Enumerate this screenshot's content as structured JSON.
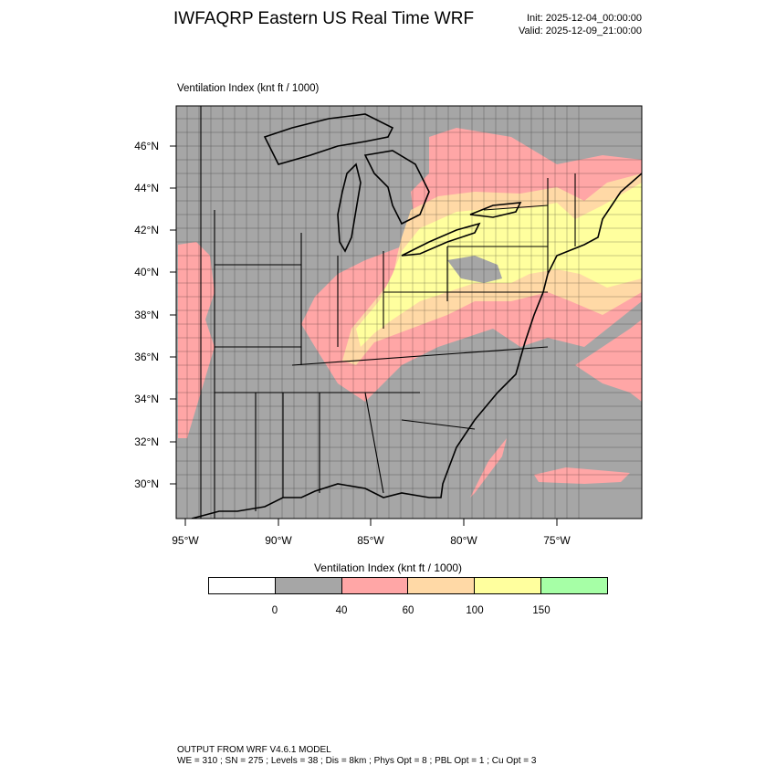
{
  "header": {
    "title": "IWFAQRP Eastern US Real Time WRF",
    "init": "Init: 2025-12-04_00:00:00",
    "valid": "Valid: 2025-12-09_21:00:00"
  },
  "map": {
    "field_label": "Ventilation Index   (knt ft / 1000)",
    "lat_labels": [
      "46°N",
      "44°N",
      "42°N",
      "40°N",
      "38°N",
      "36°N",
      "34°N",
      "32°N",
      "30°N"
    ],
    "lon_labels": [
      "95°W",
      "90°W",
      "85°W",
      "80°W",
      "75°W"
    ],
    "land_color": "#a6a6a6",
    "ocean_color": "#a6a6a6"
  },
  "colorbar": {
    "title": "Ventilation Index  (knt ft / 1000)",
    "colors": [
      "#ffffff",
      "#a6a6a6",
      "#ffa6a6",
      "#ffd9a6",
      "#ffff9e",
      "#a6ffa6"
    ],
    "tick_labels": [
      "0",
      "40",
      "60",
      "100",
      "150"
    ]
  },
  "footer": {
    "model": "OUTPUT FROM WRF V4.6.1 MODEL",
    "params": "WE = 310 ; SN = 275 ; Levels = 38 ; Dis = 8km ; Phys Opt = 8 ; PBL Opt = 1 ; Cu Opt = 3"
  }
}
